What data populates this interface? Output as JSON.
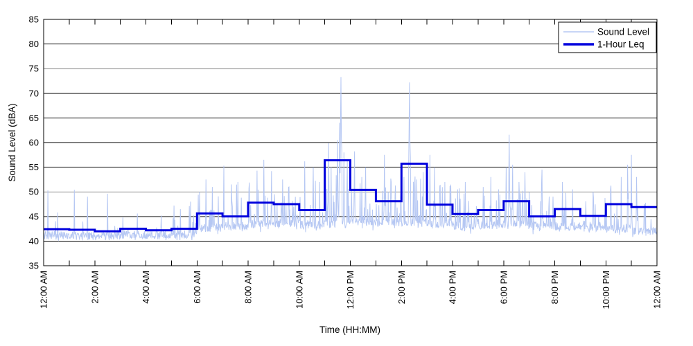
{
  "chart_data": {
    "type": "line",
    "title": "",
    "xlabel": "Time (HH:MM)",
    "ylabel": "Sound Level (dBA)",
    "ylim": [
      35,
      85
    ],
    "xlim_hours": [
      0,
      24
    ],
    "grid": "horizontal-only",
    "ytick_values": [
      35,
      40,
      45,
      50,
      55,
      60,
      65,
      70,
      75,
      80,
      85
    ],
    "xtick_hours": [
      0,
      2,
      4,
      6,
      8,
      10,
      12,
      14,
      16,
      18,
      20,
      22,
      24
    ],
    "xtick_labels": [
      "12:00 AM",
      "2:00 AM",
      "4:00 AM",
      "6:00 AM",
      "8:00 AM",
      "10:00 AM",
      "12:00 PM",
      "2:00 PM",
      "4:00 PM",
      "6:00 PM",
      "8:00 PM",
      "10:00 PM",
      "12:00 AM"
    ],
    "legend": {
      "position": "top-right",
      "entries": [
        {
          "label": "Sound Level",
          "color": "#b5c7f3",
          "weight": "thin"
        },
        {
          "label": "1-Hour Leq",
          "color": "#0000dd",
          "weight": "thick"
        }
      ]
    },
    "colors": {
      "sound_level": "#b5c7f3",
      "leq": "#0000dd",
      "grid": "#000000",
      "axis": "#000000",
      "background": "#ffffff"
    },
    "series": [
      {
        "name": "1-Hour Leq",
        "type": "step",
        "interval": "1 hour",
        "start_hours": [
          0,
          1,
          2,
          3,
          4,
          5,
          6,
          7,
          8,
          9,
          10,
          11,
          12,
          13,
          14,
          15,
          16,
          17,
          18,
          19,
          20,
          21,
          22,
          23
        ],
        "values": [
          42.4,
          42.3,
          42.0,
          42.5,
          42.2,
          42.5,
          45.6,
          45.0,
          47.8,
          47.5,
          46.3,
          56.4,
          50.4,
          48.1,
          55.7,
          47.4,
          45.5,
          46.3,
          48.1,
          45.0,
          46.5,
          45.1,
          47.5,
          46.9
        ]
      },
      {
        "name": "Sound Level",
        "type": "noisy-minute-trace",
        "synthesis": {
          "resolution_minutes": 1,
          "hourly_base": [
            41.1,
            41.0,
            41.1,
            41.2,
            41.1,
            41.3,
            42.6,
            43.0,
            43.4,
            43.6,
            43.3,
            43.4,
            43.8,
            43.6,
            43.8,
            43.4,
            43.0,
            43.2,
            43.4,
            43.0,
            42.9,
            42.7,
            42.4,
            42.0
          ],
          "hourly_spike_rate": [
            0.05,
            0.06,
            0.05,
            0.06,
            0.06,
            0.14,
            0.24,
            0.26,
            0.3,
            0.28,
            0.28,
            0.32,
            0.26,
            0.26,
            0.24,
            0.26,
            0.22,
            0.24,
            0.28,
            0.22,
            0.2,
            0.16,
            0.26,
            0.16
          ],
          "hourly_spike_amp": [
            3.2,
            3.4,
            3.0,
            3.2,
            3.4,
            5.5,
            7.5,
            9.0,
            10.5,
            8.0,
            11.0,
            13.0,
            9.5,
            10.0,
            9.0,
            10.5,
            8.5,
            9.0,
            10.5,
            8.5,
            7.5,
            6.0,
            11.0,
            7.0
          ],
          "notable_spikes": [
            [
              0.17,
              50.3
            ],
            [
              0.55,
              45.8
            ],
            [
              1.2,
              50.4
            ],
            [
              1.72,
              49.0
            ],
            [
              2.5,
              49.6
            ],
            [
              3.1,
              44.8
            ],
            [
              3.67,
              45.6
            ],
            [
              4.6,
              45.2
            ],
            [
              5.1,
              47.2
            ],
            [
              5.35,
              46.5
            ],
            [
              5.75,
              48.0
            ],
            [
              6.1,
              50.0
            ],
            [
              6.35,
              52.5
            ],
            [
              6.6,
              51.0
            ],
            [
              7.05,
              55.3
            ],
            [
              7.35,
              51.5
            ],
            [
              7.6,
              52.0
            ],
            [
              8.35,
              54.3
            ],
            [
              8.62,
              56.5
            ],
            [
              8.91,
              54.2
            ],
            [
              9.35,
              52.5
            ],
            [
              9.6,
              51.0
            ],
            [
              10.22,
              56.2
            ],
            [
              10.55,
              55.0
            ],
            [
              10.8,
              52.0
            ],
            [
              11.15,
              59.9
            ],
            [
              11.5,
              60.5
            ],
            [
              11.58,
              64.0
            ],
            [
              11.64,
              73.3
            ],
            [
              11.75,
              58.0
            ],
            [
              12.17,
              58.2
            ],
            [
              12.45,
              53.0
            ],
            [
              12.6,
              55.0
            ],
            [
              13.34,
              57.5
            ],
            [
              13.6,
              52.0
            ],
            [
              14.1,
              53.0
            ],
            [
              14.32,
              72.2
            ],
            [
              14.6,
              52.5
            ],
            [
              14.85,
              54.0
            ],
            [
              15.12,
              57.5
            ],
            [
              15.3,
              55.0
            ],
            [
              15.7,
              52.0
            ],
            [
              16.2,
              50.5
            ],
            [
              16.5,
              52.0
            ],
            [
              17.2,
              51.0
            ],
            [
              17.5,
              53.0
            ],
            [
              17.8,
              50.5
            ],
            [
              18.1,
              55.0
            ],
            [
              18.22,
              61.6
            ],
            [
              18.35,
              55.5
            ],
            [
              18.6,
              52.0
            ],
            [
              19.0,
              50.0
            ],
            [
              19.5,
              54.5
            ],
            [
              20.3,
              52.0
            ],
            [
              20.7,
              50.5
            ],
            [
              21.5,
              50.0
            ],
            [
              22.6,
              53.0
            ],
            [
              22.85,
              55.5
            ],
            [
              23.0,
              57.5
            ],
            [
              23.2,
              53.0
            ],
            [
              23.5,
              47.5
            ]
          ]
        }
      }
    ]
  }
}
